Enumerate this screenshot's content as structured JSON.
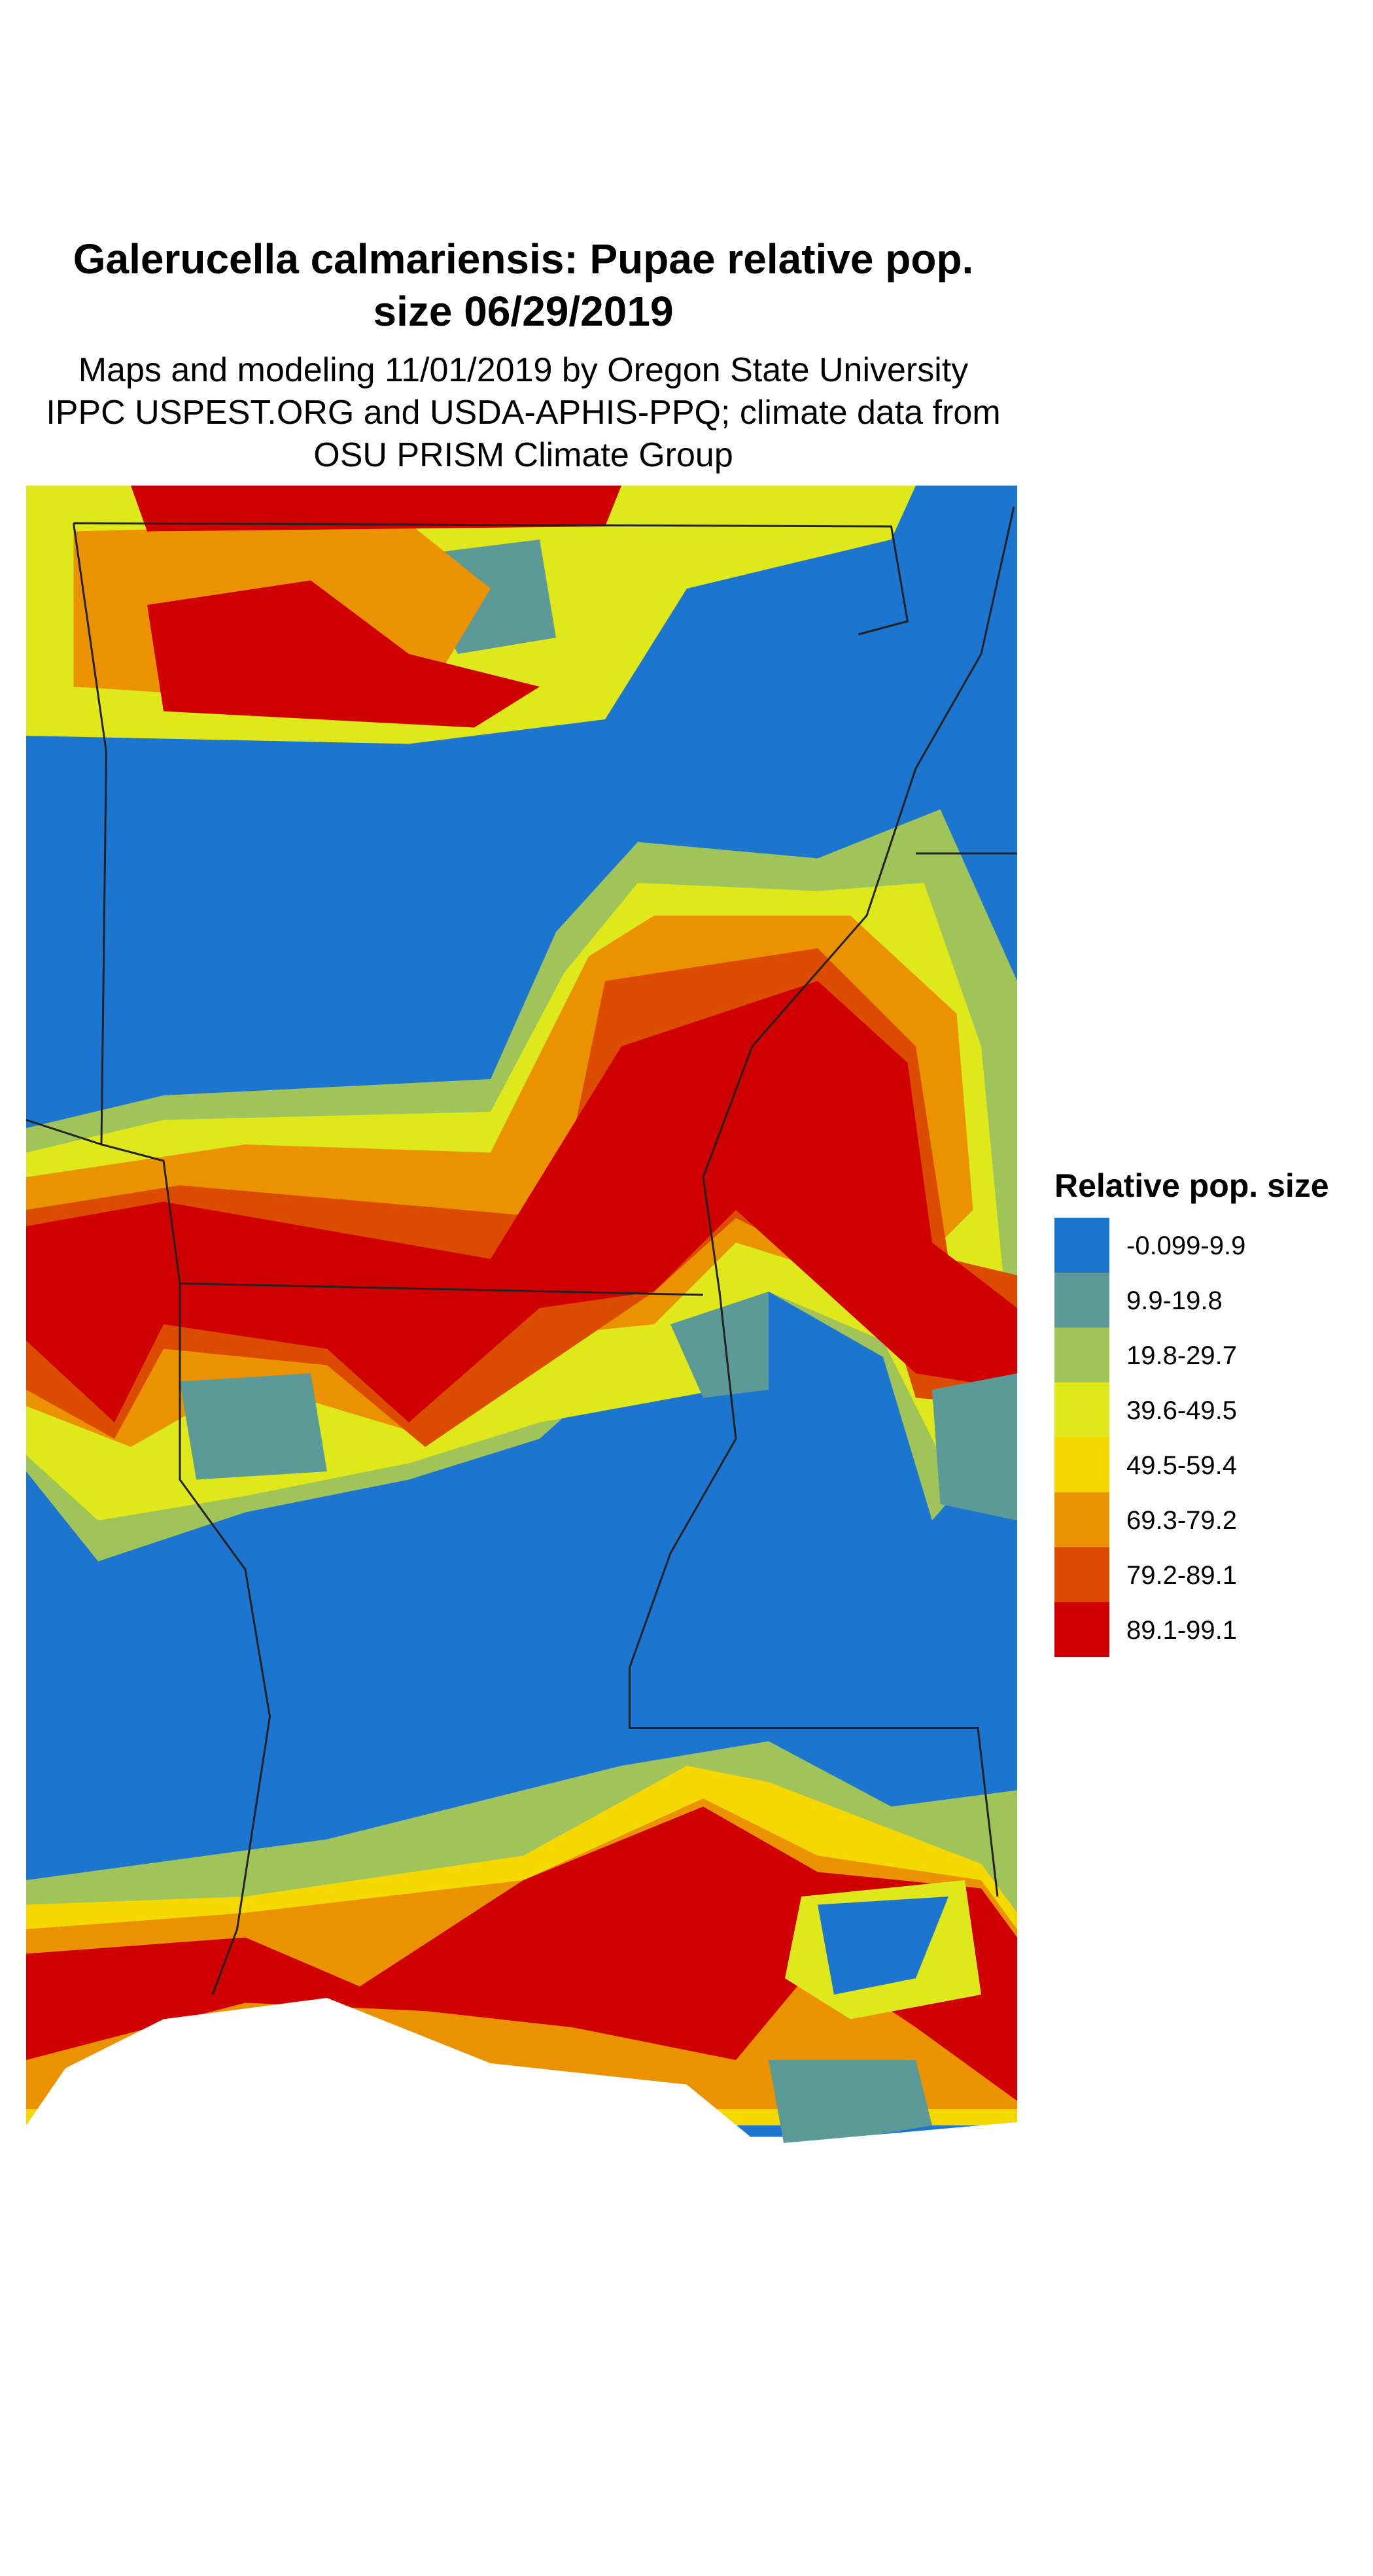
{
  "title": [
    "Galerucella calmariensis: Pupae relative pop.",
    "size 06/29/2019"
  ],
  "subtitle": [
    "Maps and modeling 11/01/2019 by Oregon State University",
    "IPPC USPEST.ORG and USDA-APHIS-PPQ; climate data from",
    "OSU PRISM Climate Group"
  ],
  "legend": {
    "title": "Relative pop. size",
    "items": [
      {
        "label": "-0.099-9.9",
        "color": "#1c75cf"
      },
      {
        "label": "9.9-19.8",
        "color": "#5c9a98"
      },
      {
        "label": "19.8-29.7",
        "color": "#a0c45a"
      },
      {
        "label": "39.6-49.5",
        "color": "#dfe81a"
      },
      {
        "label": "49.5-59.4",
        "color": "#f5d800"
      },
      {
        "label": "69.3-79.2",
        "color": "#ea9200"
      },
      {
        "label": "79.2-89.1",
        "color": "#dc4c00"
      },
      {
        "label": "89.1-99.1",
        "color": "#d00000"
      }
    ]
  }
}
